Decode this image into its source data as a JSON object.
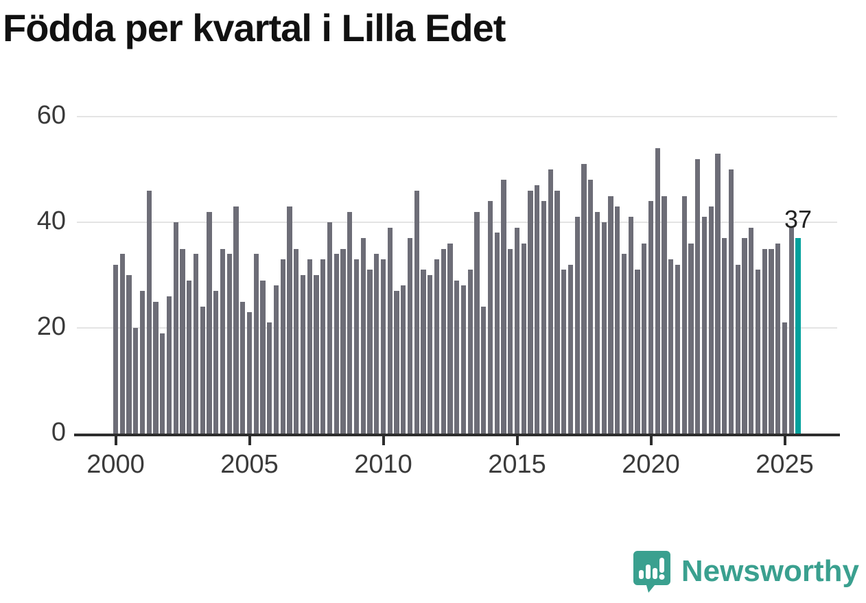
{
  "title": "Födda per kvartal i Lilla Edet",
  "branding": {
    "logo_text": "Newsworthy",
    "logo_icon": "speech-bubble-bar-chart-icon"
  },
  "colors": {
    "bar": "#6d6d77",
    "highlight": "#00a19c",
    "grid": "#e4e4e4",
    "axis": "#2d2d2d",
    "tick_text": "#3a3a3a",
    "title_text": "#111111",
    "logo": "#3aa08f"
  },
  "chart_data": {
    "type": "bar",
    "title": "Födda per kvartal i Lilla Edet",
    "xlabel": "",
    "ylabel": "",
    "frequency": "quarterly",
    "start_quarter": "2000Q1",
    "end_quarter": "2025Q3",
    "start_year": 2000,
    "ylim": [
      0,
      62
    ],
    "grid": "horizontal",
    "legend": "none",
    "y_ticks": [
      0,
      20,
      40,
      60
    ],
    "x_tick_years": [
      2000,
      2005,
      2010,
      2015,
      2020,
      2025
    ],
    "values": [
      32,
      34,
      30,
      20,
      27,
      46,
      25,
      19,
      26,
      40,
      35,
      29,
      34,
      24,
      42,
      27,
      35,
      34,
      43,
      25,
      23,
      34,
      29,
      21,
      28,
      33,
      43,
      35,
      30,
      33,
      30,
      33,
      40,
      34,
      35,
      42,
      33,
      37,
      31,
      34,
      33,
      39,
      27,
      28,
      37,
      46,
      31,
      30,
      33,
      35,
      36,
      29,
      28,
      31,
      42,
      24,
      44,
      38,
      48,
      35,
      39,
      36,
      46,
      47,
      44,
      50,
      46,
      31,
      32,
      41,
      51,
      48,
      42,
      40,
      45,
      43,
      34,
      41,
      31,
      36,
      44,
      54,
      45,
      33,
      32,
      45,
      36,
      52,
      41,
      43,
      53,
      37,
      50,
      32,
      37,
      39,
      31,
      35,
      35,
      36,
      21,
      39,
      37
    ],
    "highlight": {
      "quarter": "2025Q3",
      "value": 37,
      "label": "37"
    }
  }
}
